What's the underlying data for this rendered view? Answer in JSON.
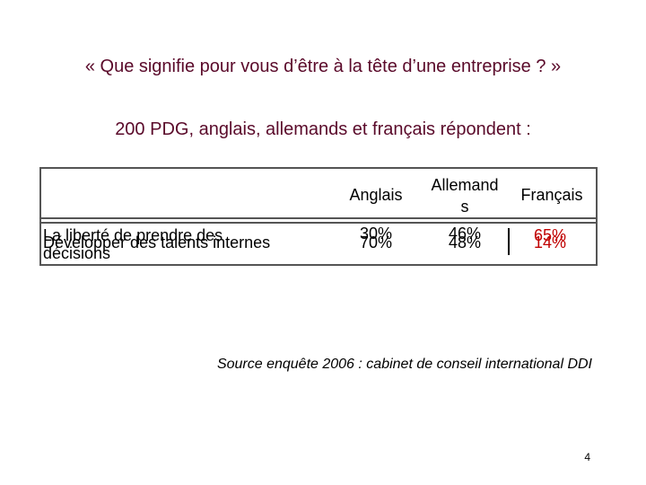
{
  "slide": {
    "title": "« Que signifie pour vous d’être à la tête d’une entreprise ? »",
    "subtitle": "200 PDG, anglais, allemands et français répondent :",
    "colors": {
      "title": "#5a0a2a",
      "text": "#000000",
      "highlight": "#c00000"
    },
    "table": {
      "headers": [
        "Anglais",
        "Allemands",
        "Français"
      ],
      "rows": [
        {
          "label": "La liberté de prendre des décisions",
          "values": [
            "30%",
            "46%",
            "65%"
          ]
        },
        {
          "label": "Développer des talents internes",
          "values": [
            "70%",
            "48%",
            "14%"
          ]
        }
      ]
    },
    "source": "Source enquête 2006 : cabinet de conseil international DDI",
    "page_number": "4"
  }
}
